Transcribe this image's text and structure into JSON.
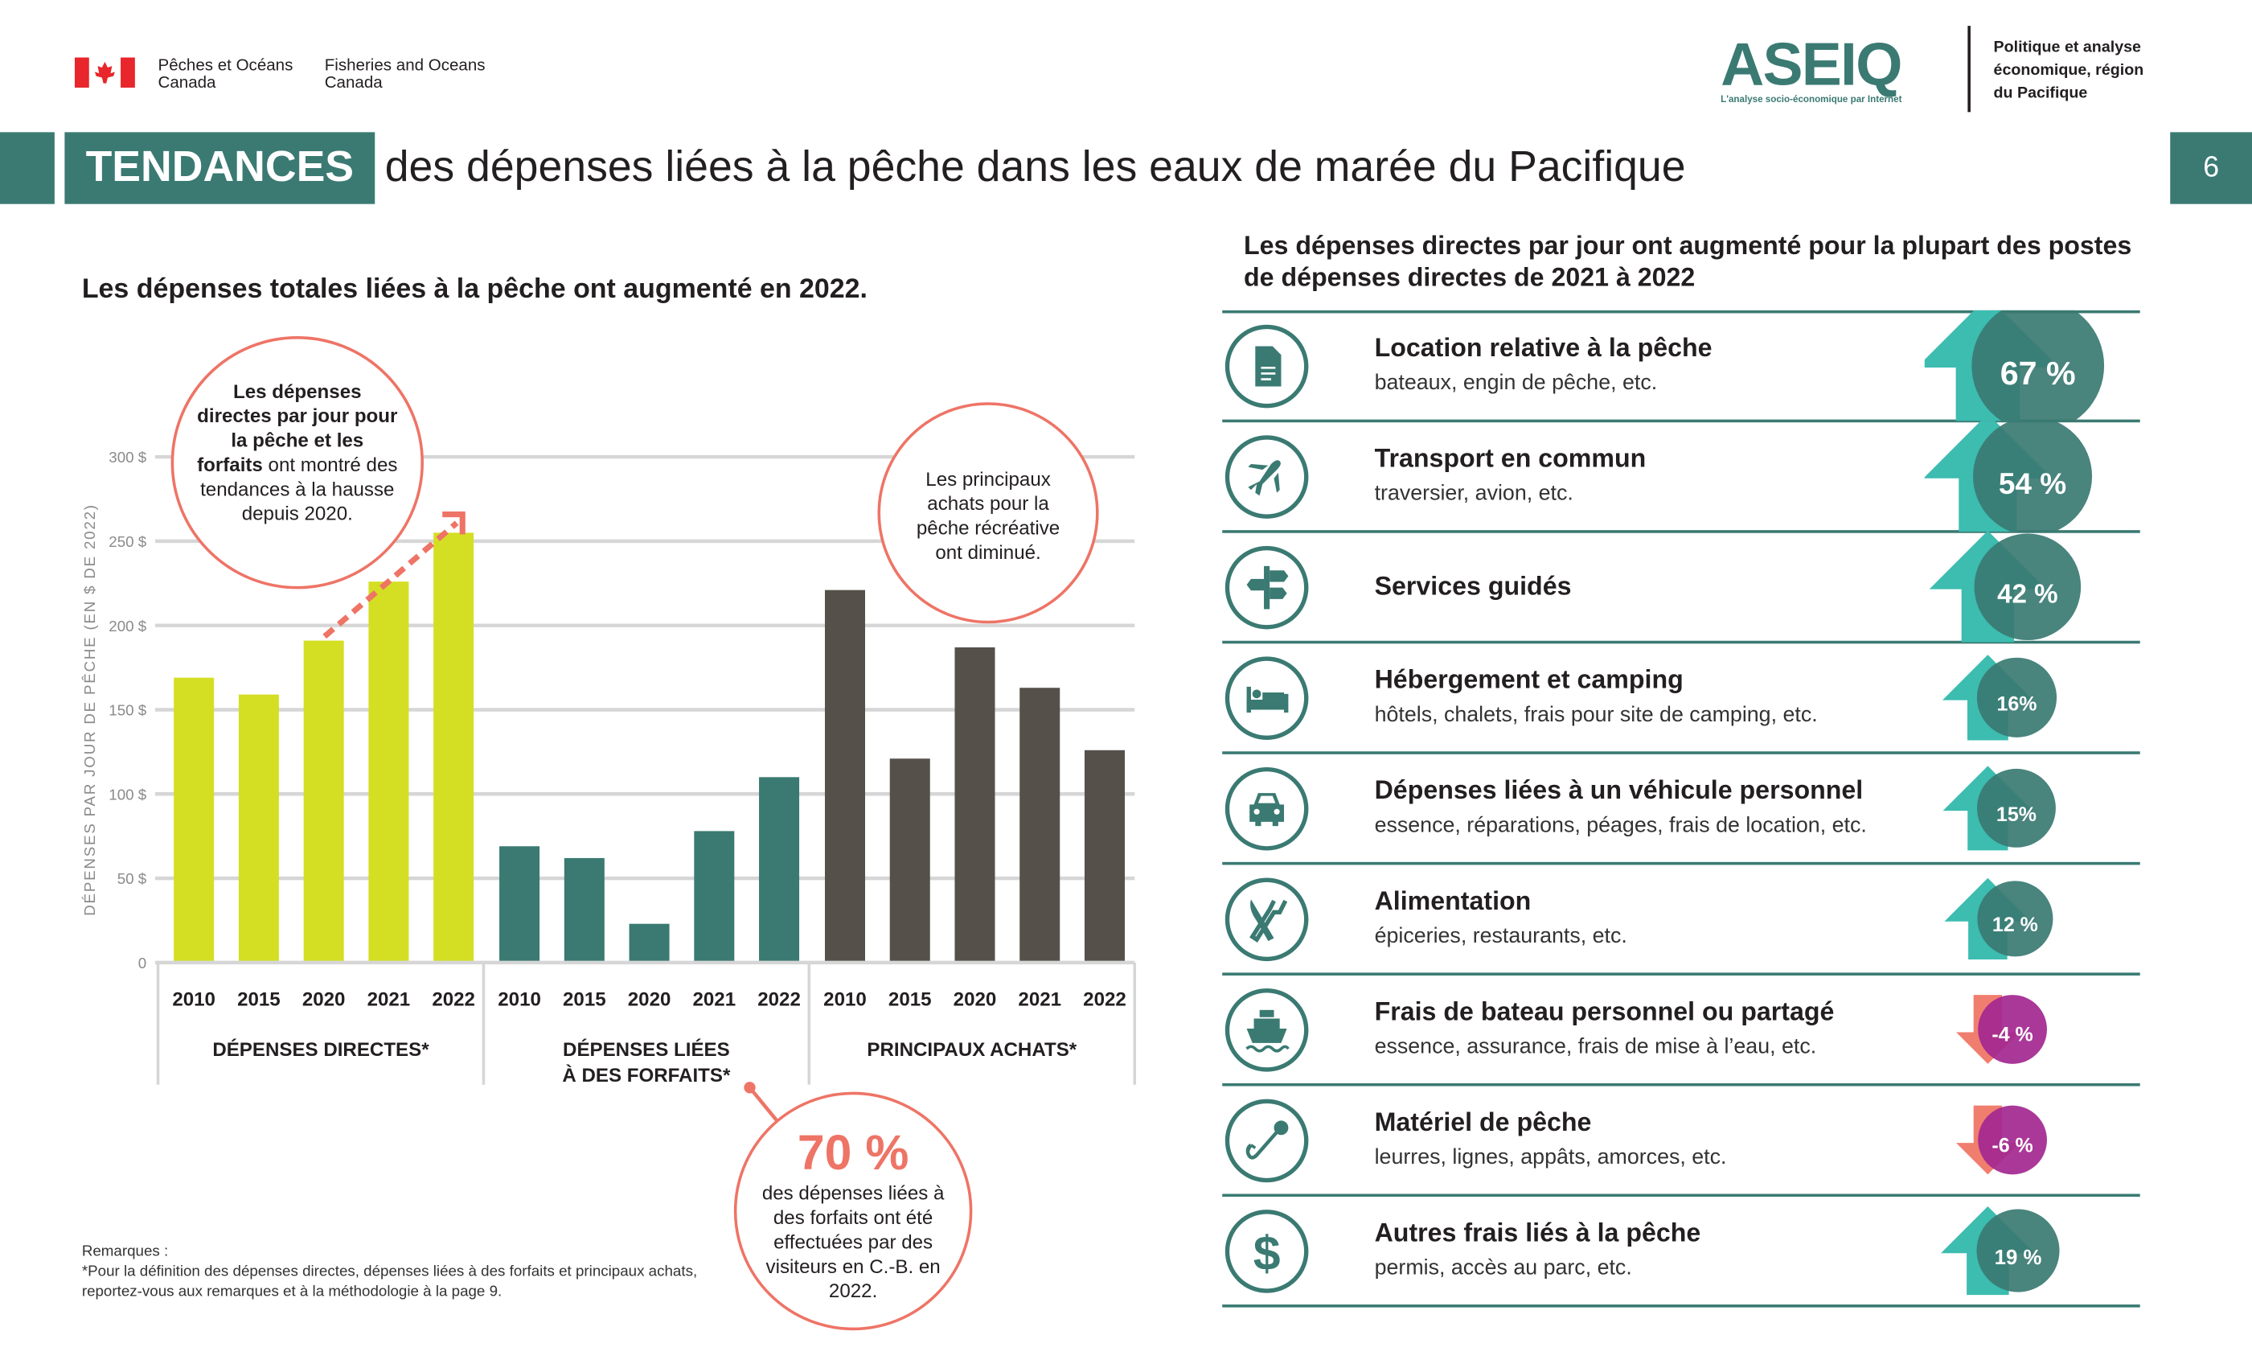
{
  "header": {
    "dfo_fr": [
      "Pêches et Océans",
      "Canada"
    ],
    "dfo_en": [
      "Fisheries and Oceans",
      "Canada"
    ],
    "logo_text": "ASEIQ",
    "logo_tagline": "L'analyse socio-économique par Internet",
    "division": [
      "Politique et analyse",
      "économique, région",
      "du Pacifique"
    ],
    "title_highlight": "TENDANCES",
    "title_rest": "des dépenses liées à la pêche dans les eaux de marée du Pacifique",
    "page_number": "6"
  },
  "left": {
    "subtitle": "Les dépenses totales liées à la pêche ont augmenté en 2022.",
    "callout_trend": {
      "bold": "Les dépenses directes par jour pour la pêche et les forfaits",
      "rest": " ont montré des tendances à la hausse depuis 2020."
    },
    "callout_purchases": "Les principaux achats pour la pêche récréative ont diminué.",
    "callout_pct": {
      "value": "70 %",
      "text": "des dépenses liées à des forfaits ont été effectuées par des visiteurs en C.-B. en 2022."
    },
    "notes_title": "Remarques :",
    "notes_text": "*Pour la définition des dépenses directes, dépenses liées à des forfaits et principaux achats, reportez-vous aux remarques et à la méthodologie à la page 9."
  },
  "chart_data": {
    "type": "bar",
    "ylabel": "DÉPENSES PAR JOUR DE PÊCHE (EN $ DE 2022)",
    "ylim": [
      0,
      300
    ],
    "yticks": [
      "0",
      "50 $",
      "100 $",
      "150 $",
      "200 $",
      "250 $",
      "300 $"
    ],
    "grid": true,
    "groups": [
      {
        "name": "DÉPENSES DIRECTES*",
        "color": "#d4df24",
        "categories": [
          "2010",
          "2015",
          "2020",
          "2021",
          "2022"
        ],
        "values": [
          169,
          159,
          191,
          226,
          255
        ]
      },
      {
        "name": "DÉPENSES LIÉES À DES FORFAITS*",
        "color": "#3a7a72",
        "categories": [
          "2010",
          "2015",
          "2020",
          "2021",
          "2022"
        ],
        "values": [
          69,
          62,
          23,
          78,
          110
        ]
      },
      {
        "name": "PRINCIPAUX ACHATS*",
        "color": "#55514a",
        "categories": [
          "2010",
          "2015",
          "2020",
          "2021",
          "2022"
        ],
        "values": [
          221,
          121,
          187,
          163,
          126
        ]
      }
    ]
  },
  "right": {
    "heading": "Les dépenses directes par jour ont augmenté pour la plupart des postes de dépenses directes de 2021 à 2022",
    "up_color": "#3dbcb0",
    "up_circle_color": "#3a7a72",
    "down_color": "#f07e6e",
    "down_circle_color": "#a3278f",
    "items": [
      {
        "icon": "document-icon",
        "title": "Location relative à la pêche",
        "subtitle": "bateaux, engin de pêche, etc.",
        "change": 67,
        "label": "67 %"
      },
      {
        "icon": "airplane-icon",
        "title": "Transport en commun",
        "subtitle": "traversier, avion, etc.",
        "change": 54,
        "label": "54 %"
      },
      {
        "icon": "signpost-icon",
        "title": "Services guidés",
        "subtitle": "",
        "change": 42,
        "label": "42 %"
      },
      {
        "icon": "bed-icon",
        "title": "Hébergement et camping",
        "subtitle": "hôtels, chalets, frais pour site de camping, etc.",
        "change": 16,
        "label": "16%"
      },
      {
        "icon": "car-icon",
        "title": "Dépenses liées à un véhicule personnel",
        "subtitle": "essence, réparations, péages, frais de location, etc.",
        "change": 15,
        "label": "15%"
      },
      {
        "icon": "cutlery-icon",
        "title": "Alimentation",
        "subtitle": "épiceries, restaurants, etc.",
        "change": 12,
        "label": "12 %"
      },
      {
        "icon": "boat-icon",
        "title": "Frais de bateau personnel ou partagé",
        "subtitle": "essence, assurance, frais de mise à l’eau, etc.",
        "change": -4,
        "label": "-4 %"
      },
      {
        "icon": "fishing-hook-icon",
        "title": "Matériel de pêche",
        "subtitle": "leurres, lignes, appâts, amorces, etc.",
        "change": -6,
        "label": "-6 %"
      },
      {
        "icon": "dollar-icon",
        "title": "Autres frais liés à la pêche",
        "subtitle": "permis, accès au parc, etc.",
        "change": 19,
        "label": "19 %"
      }
    ]
  }
}
